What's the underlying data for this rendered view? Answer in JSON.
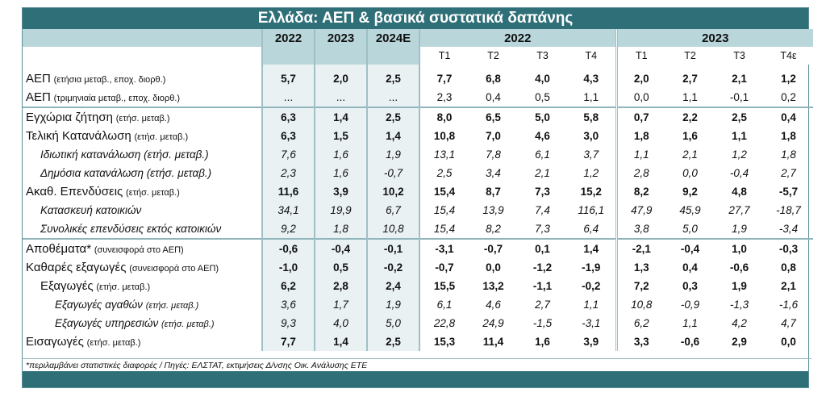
{
  "title": "Ελλάδα: ΑΕΠ & βασικά συστατικά δαπάνης",
  "header": {
    "years": [
      "2022",
      "2023",
      "2024E"
    ],
    "group_2022": "2022",
    "group_2023": "2023",
    "quarters": [
      "T1",
      "T2",
      "T3",
      "T4",
      "T1",
      "T2",
      "T3",
      "T4ε"
    ]
  },
  "rows": [
    {
      "label": "ΑΕΠ",
      "unit": "(ετήσια μεταβ., εποχ. διορθ.)",
      "vals": [
        "5,7",
        "2,0",
        "2,5",
        "7,7",
        "6,8",
        "4,0",
        "4,3",
        "2,0",
        "2,7",
        "2,1",
        "1,2"
      ]
    },
    {
      "label": "ΑΕΠ",
      "unit": "(τριμηνιαία μεταβ., εποχ. διορθ.)",
      "vals": [
        "...",
        "...",
        "...",
        "2,3",
        "0,4",
        "0,5",
        "1,1",
        "0,0",
        "1,1",
        "-0,1",
        "0,2"
      ]
    },
    {
      "label": "Εγχώρια ζήτηση",
      "unit": "(ετήσ. μεταβ.)",
      "vals": [
        "6,3",
        "1,4",
        "2,5",
        "8,0",
        "6,5",
        "5,0",
        "5,8",
        "0,7",
        "2,2",
        "2,5",
        "0,4"
      ]
    },
    {
      "label": "Τελική Κατανάλωση",
      "unit": "(ετήσ. μεταβ.)",
      "vals": [
        "6,3",
        "1,5",
        "1,4",
        "10,8",
        "7,0",
        "4,6",
        "3,0",
        "1,8",
        "1,6",
        "1,1",
        "1,8"
      ]
    },
    {
      "label": "Ιδιωτική κατανάλωση (ετήσ. μεταβ.)",
      "unit": "",
      "vals": [
        "7,6",
        "1,6",
        "1,9",
        "13,1",
        "7,8",
        "6,1",
        "3,7",
        "1,1",
        "2,1",
        "1,2",
        "1,8"
      ]
    },
    {
      "label": "Δημόσια κατανάλωση (ετήσ. μεταβ.)",
      "unit": "",
      "vals": [
        "2,3",
        "1,6",
        "-0,7",
        "2,5",
        "3,4",
        "2,1",
        "1,2",
        "2,8",
        "0,0",
        "-0,4",
        "2,7"
      ]
    },
    {
      "label": "Ακαθ. Επενδύσεις",
      "unit": "(ετήσ. μεταβ.)",
      "vals": [
        "11,6",
        "3,9",
        "10,2",
        "15,4",
        "8,7",
        "7,3",
        "15,2",
        "8,2",
        "9,2",
        "4,8",
        "-5,7"
      ]
    },
    {
      "label": "Κατασκευή κατοικιών",
      "unit": "",
      "vals": [
        "34,1",
        "19,9",
        "6,7",
        "15,4",
        "13,9",
        "7,4",
        "116,1",
        "47,9",
        "45,9",
        "27,7",
        "-18,7"
      ]
    },
    {
      "label": "Συνολικές επενδύσεις εκτός κατοικιών",
      "unit": "",
      "vals": [
        "9,2",
        "1,8",
        "10,8",
        "15,4",
        "8,2",
        "7,3",
        "6,4",
        "3,8",
        "5,0",
        "1,9",
        "-3,4"
      ]
    },
    {
      "label": "Αποθέματα*",
      "unit": "(συνεισφορά στο ΑΕΠ)",
      "vals": [
        "-0,6",
        "-0,4",
        "-0,1",
        "-3,1",
        "-0,7",
        "0,1",
        "1,4",
        "-2,1",
        "-0,4",
        "1,0",
        "-0,3"
      ]
    },
    {
      "label": "Καθαρές εξαγωγές",
      "unit": "(συνεισφορά στο ΑΕΠ)",
      "vals": [
        "-1,0",
        "0,5",
        "-0,2",
        "-0,7",
        "0,0",
        "-1,2",
        "-1,9",
        "1,3",
        "0,4",
        "-0,6",
        "0,8"
      ]
    },
    {
      "label": "Εξαγωγές",
      "unit": "(ετήσ. μεταβ.)",
      "vals": [
        "6,2",
        "2,8",
        "2,4",
        "15,5",
        "13,2",
        "-1,1",
        "-0,2",
        "7,2",
        "0,3",
        "1,9",
        "2,1"
      ]
    },
    {
      "label": "Εξαγωγές αγαθών",
      "unit": "(ετήσ. μεταβ.)",
      "vals": [
        "3,6",
        "1,7",
        "1,9",
        "6,1",
        "4,6",
        "2,7",
        "1,1",
        "10,8",
        "-0,9",
        "-1,3",
        "-1,6"
      ]
    },
    {
      "label": "Εξαγωγές υπηρεσιών",
      "unit": "(ετήσ. μεταβ.)",
      "vals": [
        "9,3",
        "4,0",
        "5,0",
        "22,8",
        "24,9",
        "-1,5",
        "-3,1",
        "6,2",
        "1,1",
        "4,2",
        "4,7"
      ]
    },
    {
      "label": "Εισαγωγές",
      "unit": "(ετήσ. μεταβ.)",
      "vals": [
        "7,7",
        "1,4",
        "2,5",
        "15,3",
        "11,4",
        "1,6",
        "3,9",
        "3,3",
        "-0,6",
        "2,9",
        "0,0"
      ]
    }
  ],
  "footnote": "*περιλαμβάνει στατιστικές διαφορές / Πηγές: ΕΛΣΤΑΤ, εκτιμήσεις Δ/νσης Οικ. Ανάλυσης ΕΤΕ"
}
